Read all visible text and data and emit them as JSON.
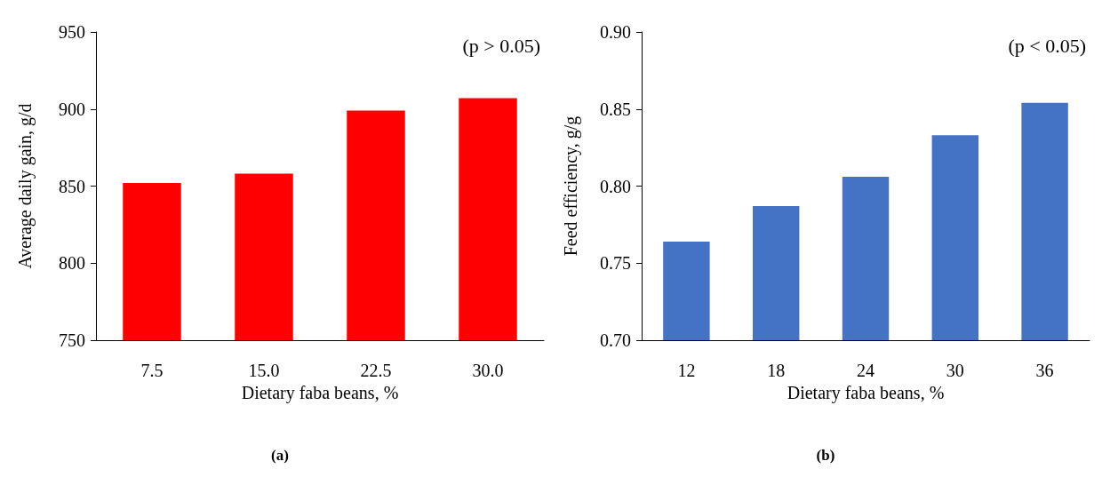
{
  "chart_data": [
    {
      "type": "bar",
      "ylabel": "Average daily gain, g/d",
      "xlabel": "Dietary faba beans, %",
      "categories": [
        "7.5",
        "15.0",
        "22.5",
        "30.0"
      ],
      "values": [
        852,
        858,
        899,
        907
      ],
      "color": "#ff0000",
      "ylim": [
        750,
        950
      ],
      "yticks": [
        750,
        800,
        850,
        900,
        950
      ],
      "grid": false,
      "annotations": [
        "(p > 0.05)",
        "(a)"
      ]
    },
    {
      "type": "bar",
      "ylabel": "Feed efficiency, g/g",
      "xlabel": "Dietary faba beans, %",
      "categories": [
        "12",
        "18",
        "24",
        "30",
        "36"
      ],
      "values": [
        0.764,
        0.787,
        0.806,
        0.833,
        0.854
      ],
      "color": "#4472c4",
      "ylim": [
        0.7,
        0.9
      ],
      "yticks": [
        {
          "value": 0.7,
          "label": "0.70"
        },
        0.75,
        {
          "value": 0.8,
          "label": "0.80"
        },
        0.85,
        {
          "value": 0.9,
          "label": "0.90"
        }
      ],
      "grid": false,
      "annotations": [
        "(p < 0.05)",
        "(b)"
      ]
    }
  ]
}
